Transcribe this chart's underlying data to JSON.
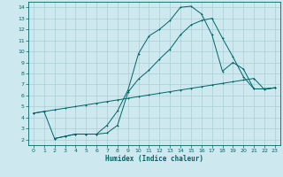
{
  "xlabel": "Humidex (Indice chaleur)",
  "background_color": "#cde8ee",
  "grid_color": "#a8cdd4",
  "line_color": "#006666",
  "xlim": [
    -0.5,
    23.5
  ],
  "ylim": [
    1.5,
    14.5
  ],
  "xticks": [
    0,
    1,
    2,
    3,
    4,
    5,
    6,
    7,
    8,
    9,
    10,
    11,
    12,
    13,
    14,
    15,
    16,
    17,
    18,
    19,
    20,
    21,
    22,
    23
  ],
  "yticks": [
    2,
    3,
    4,
    5,
    6,
    7,
    8,
    9,
    10,
    11,
    12,
    13,
    14
  ],
  "curve1_x": [
    0,
    1,
    2,
    3,
    4,
    5,
    6,
    7,
    8,
    9,
    10,
    11,
    12,
    13,
    14,
    15,
    16,
    17,
    18,
    19,
    20,
    21,
    22,
    23
  ],
  "curve1_y": [
    4.4,
    4.55,
    4.7,
    4.85,
    5.0,
    5.15,
    5.3,
    5.45,
    5.6,
    5.75,
    5.9,
    6.05,
    6.2,
    6.35,
    6.5,
    6.65,
    6.8,
    6.95,
    7.1,
    7.25,
    7.4,
    7.55,
    6.55,
    6.7
  ],
  "curve2_x": [
    0,
    1,
    2,
    3,
    4,
    5,
    6,
    7,
    8,
    9,
    10,
    11,
    12,
    13,
    14,
    15,
    16,
    17,
    18,
    19,
    20,
    21,
    22,
    23
  ],
  "curve2_y": [
    4.4,
    4.55,
    2.1,
    2.3,
    2.5,
    2.5,
    2.5,
    3.3,
    4.6,
    6.5,
    9.8,
    11.4,
    12.0,
    12.8,
    14.0,
    14.1,
    13.4,
    11.5,
    8.2,
    9.0,
    8.4,
    6.6,
    6.6,
    6.7
  ],
  "curve3_x": [
    2,
    3,
    4,
    5,
    6,
    7,
    8,
    9,
    10,
    11,
    12,
    13,
    14,
    15,
    16,
    17,
    18,
    19,
    20,
    21,
    22,
    23
  ],
  "curve3_y": [
    2.1,
    2.3,
    2.5,
    2.5,
    2.5,
    2.6,
    3.3,
    6.3,
    7.5,
    8.3,
    9.3,
    10.2,
    11.5,
    12.4,
    12.8,
    13.0,
    11.2,
    9.5,
    7.7,
    6.6,
    6.6,
    6.7
  ]
}
